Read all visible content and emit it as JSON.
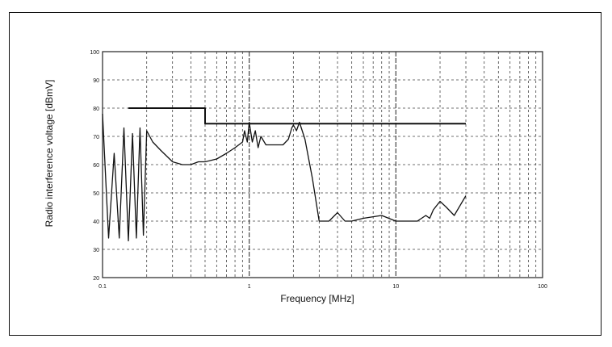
{
  "chart_data": {
    "type": "line",
    "xlabel": "Frequency [MHz]",
    "ylabel": "Radio interference voltage [dBmV]",
    "xscale": "log",
    "xlim": [
      0.1,
      100
    ],
    "ylim": [
      20,
      100
    ],
    "x_ticks": [
      0.1,
      1,
      10,
      100
    ],
    "x_tick_labels": [
      "0.1",
      "1",
      "10",
      "100"
    ],
    "y_ticks": [
      20,
      30,
      40,
      50,
      60,
      70,
      80,
      90,
      100
    ],
    "y_tick_labels": [
      "20",
      "30",
      "40",
      "50",
      "60",
      "70",
      "80",
      "90",
      "100"
    ],
    "grid": true,
    "series": [
      {
        "role": "limit",
        "color": "#111111",
        "x": [
          0.15,
          0.5,
          0.5,
          30
        ],
        "y": [
          80,
          80,
          74.5,
          74.5
        ]
      },
      {
        "role": "measurement",
        "color": "#111111",
        "x": [
          0.1,
          0.11,
          0.12,
          0.13,
          0.14,
          0.15,
          0.16,
          0.17,
          0.18,
          0.19,
          0.2,
          0.22,
          0.25,
          0.3,
          0.35,
          0.4,
          0.45,
          0.5,
          0.6,
          0.7,
          0.8,
          0.9,
          0.93,
          0.97,
          1.0,
          1.05,
          1.1,
          1.15,
          1.2,
          1.3,
          1.5,
          1.7,
          1.85,
          1.95,
          2.0,
          2.1,
          2.2,
          2.4,
          2.7,
          3.0,
          3.5,
          4.0,
          4.5,
          5.0,
          6.0,
          8.0,
          10.0,
          14.0,
          16.0,
          17.0,
          18.0,
          20.0,
          22.0,
          25.0,
          30.0
        ],
        "y": [
          78,
          34,
          64,
          34,
          73,
          33,
          71,
          34,
          73,
          35,
          72,
          68,
          65,
          61,
          60,
          60,
          61,
          61,
          62,
          64,
          66,
          68,
          72,
          68,
          75,
          68,
          72,
          66,
          70,
          67,
          67,
          67,
          69,
          73,
          74,
          72,
          75,
          69,
          55,
          40,
          40,
          43,
          40,
          40,
          41,
          42,
          40,
          40,
          42,
          41,
          44,
          47,
          45,
          42,
          49
        ]
      }
    ]
  }
}
